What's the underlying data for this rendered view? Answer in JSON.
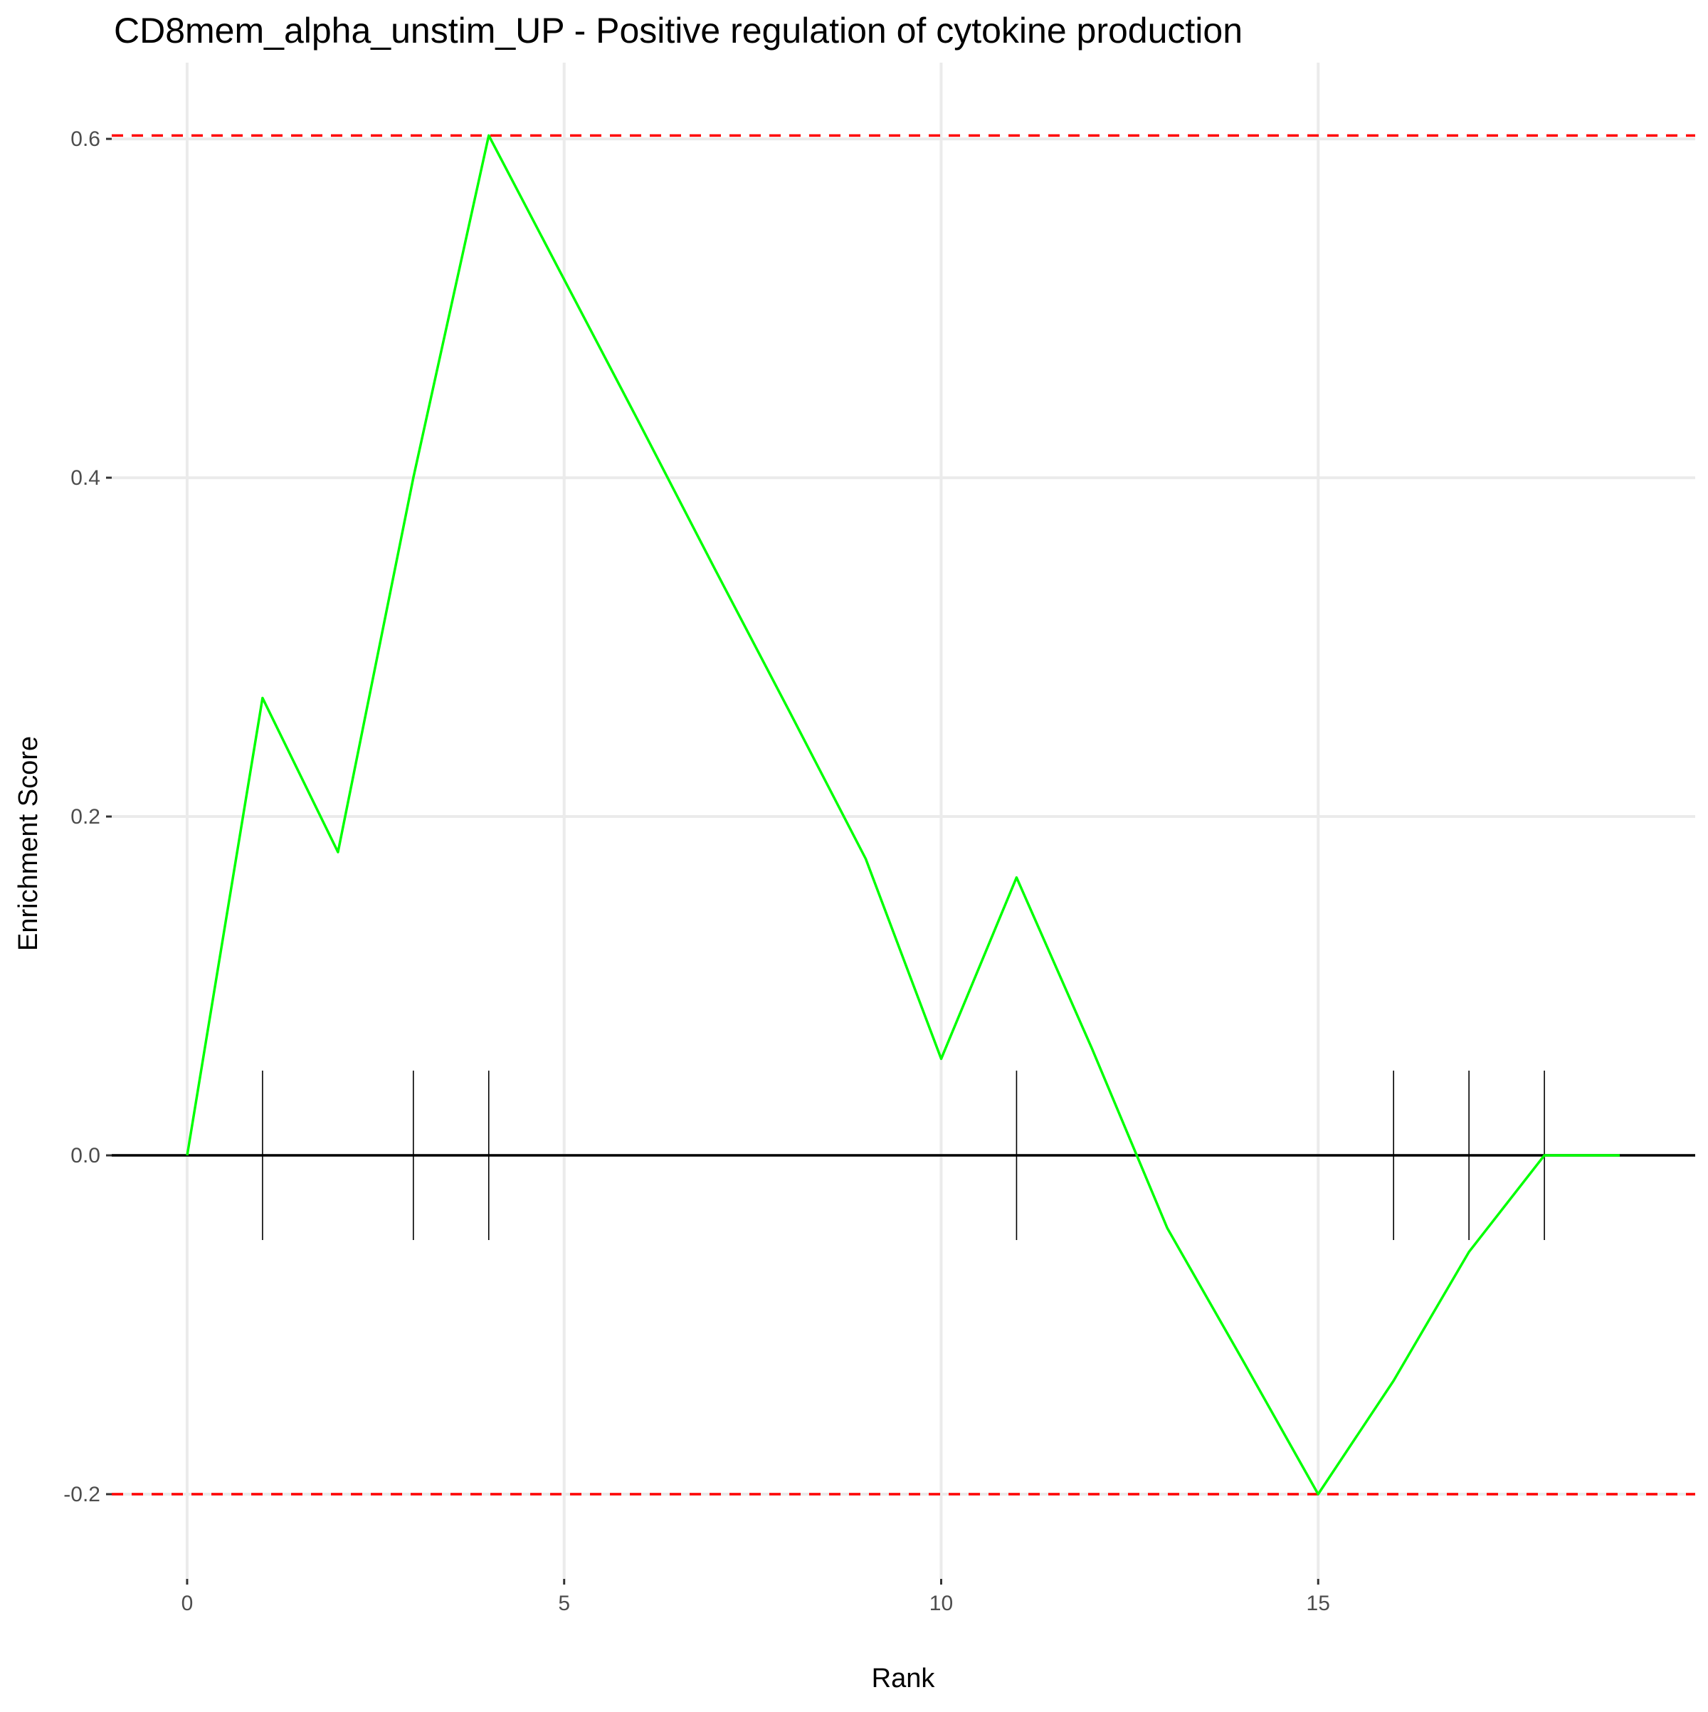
{
  "chart_data": {
    "type": "line",
    "title": "CD8mem_alpha_unstim_UP - Positive regulation of cytokine production",
    "xlabel": "Rank",
    "ylabel": "Enrichment Score",
    "xlim": [
      -1,
      20
    ],
    "ylim": [
      -0.25,
      0.645
    ],
    "x_ticks": [
      0,
      5,
      10,
      15
    ],
    "x_tick_labels": [
      "0",
      "5",
      "10",
      "15"
    ],
    "y_ticks": [
      -0.2,
      0.0,
      0.2,
      0.4,
      0.6
    ],
    "y_tick_labels": [
      "-0.2",
      "0.0",
      "0.2",
      "0.4",
      "0.6"
    ],
    "grid": true,
    "series": [
      {
        "color": "#00ff00",
        "x": [
          0,
          1,
          2,
          3,
          4,
          5,
          6,
          7,
          8,
          9,
          10,
          11,
          12,
          13,
          14,
          15,
          16,
          17,
          18,
          19
        ],
        "y": [
          0.0,
          0.27,
          0.179,
          0.4,
          0.602,
          0.517,
          0.432,
          0.346,
          0.261,
          0.175,
          0.057,
          0.164,
          0.063,
          -0.043,
          -0.121,
          -0.2,
          -0.133,
          -0.057,
          0.0,
          0.0
        ]
      }
    ],
    "hit_ranks": [
      1,
      3,
      4,
      11,
      16,
      17,
      18
    ],
    "hit_marks": {
      "top": 0.05,
      "bottom": -0.05,
      "color": "#000000"
    },
    "reference_lines": [
      {
        "y": 0.602,
        "color": "#ff0000",
        "style": "dashed"
      },
      {
        "y": -0.2,
        "color": "#ff0000",
        "style": "dashed"
      }
    ],
    "zero_line": {
      "y": 0.0,
      "color": "#000000"
    }
  }
}
